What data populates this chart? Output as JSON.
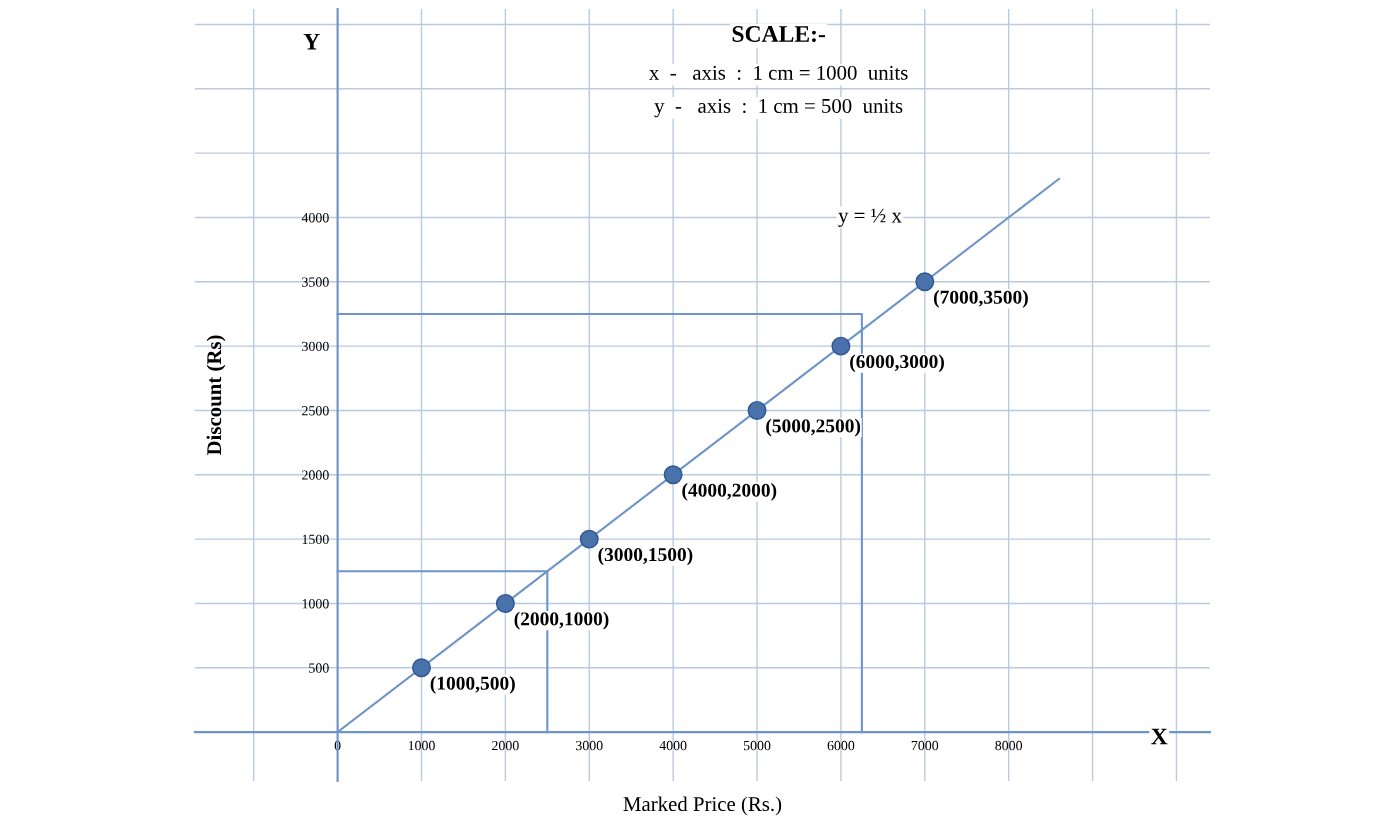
{
  "chart_data": {
    "type": "scatter",
    "xlabel": "Marked Price (Rs.)",
    "ylabel": "Discount (Rs)",
    "xlim": [
      -1700,
      10400
    ],
    "ylim": [
      -380,
      5620
    ],
    "xticks": [
      {
        "value": -1000,
        "label": null
      },
      0,
      1000,
      2000,
      3000,
      4000,
      5000,
      6000,
      7000,
      8000,
      {
        "value": 9000,
        "label": null
      },
      {
        "value": 10000,
        "label": null
      }
    ],
    "yticks": [
      {
        "value": 0,
        "label": null
      },
      500,
      1000,
      1500,
      2000,
      2500,
      3000,
      3500,
      4000,
      {
        "value": 4500,
        "label": null
      },
      {
        "value": 5000,
        "label": null
      },
      {
        "value": 5500,
        "label": null
      }
    ],
    "grid": true,
    "series": [
      {
        "type": "line",
        "color": "#6f94c8",
        "x": [
          0,
          8600
        ],
        "values": [
          0,
          4300
        ],
        "marker": "none"
      },
      {
        "type": "line",
        "color": "#6f94c8",
        "x": [
          2500,
          2500,
          0
        ],
        "values": [
          0,
          1250,
          1250
        ],
        "marker": "none"
      },
      {
        "type": "line",
        "color": "#6f94c8",
        "x": [
          0,
          6250,
          6250
        ],
        "values": [
          3250,
          3250,
          0
        ],
        "marker": "none"
      },
      {
        "color": "#4a72aa",
        "marker": "circle",
        "x": [
          1000,
          2000,
          3000,
          4000,
          5000,
          6000,
          7000
        ],
        "values": [
          500,
          1000,
          1500,
          2000,
          2500,
          3000,
          3500
        ],
        "value_labels": [
          "(1000,500)",
          "(2000,1000)",
          "(3000,1500)",
          "(4000,2000)",
          "(5000,2500)",
          "(6000,3000)",
          "(7000,3500)"
        ]
      }
    ],
    "annotations": [
      "SCALE:-",
      "x  -   axis  :  1 cm = 1000  units",
      "y  -   axis  :  1 cm = 500  units",
      "X",
      "Y",
      "y = ½ x"
    ]
  }
}
